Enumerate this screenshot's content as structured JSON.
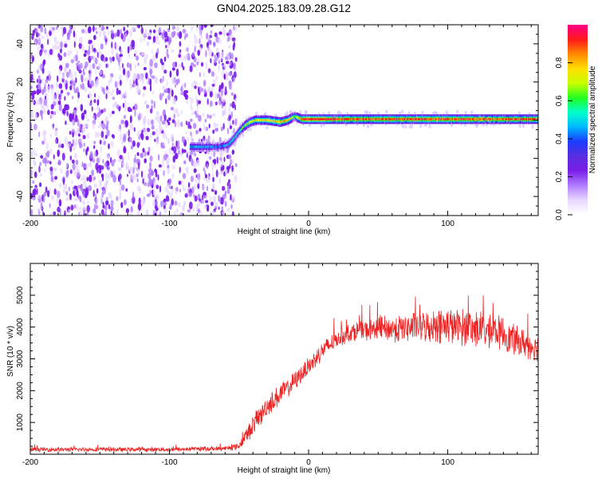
{
  "title": "GN04.2025.183.09.28.G12",
  "colors": {
    "axis": "#000000",
    "snr_line": "#ee2222",
    "scatter_noise": "#7a1ee8",
    "colormap": [
      "#ffffff",
      "#e8d8ff",
      "#b07cff",
      "#7a1ee8",
      "#5a2ee0",
      "#1b3cff",
      "#00b7ff",
      "#00ffcc",
      "#22ff22",
      "#c8ff00",
      "#ffdd00",
      "#ff8800",
      "#ff1a1a",
      "#ff0088"
    ]
  },
  "chart_data": [
    {
      "type": "heatmap",
      "name": "spectrogram",
      "title": "GN04.2025.183.09.28.G12",
      "xlabel": "Height of straight line (km)",
      "ylabel": "Frequency (Hz)",
      "xlim": [
        -200,
        165
      ],
      "ylim": [
        -50,
        50
      ],
      "x_ticks": [
        "-200",
        "-100",
        "0",
        "100"
      ],
      "y_ticks": [
        "40",
        "20",
        "0",
        "-20",
        "-40"
      ],
      "grid": false,
      "colorbar": {
        "label": "Normalized spectral amplitude",
        "range": [
          0,
          1
        ],
        "ticks": [
          "0.0",
          "0.2",
          "0.4",
          "0.6",
          "0.8"
        ]
      },
      "noise_region_x": [
        -200,
        -55
      ],
      "signal_ridge": {
        "x": [
          -85,
          -75,
          -65,
          -58,
          -54,
          -50,
          -46,
          -42,
          -38,
          -30,
          -20,
          -15,
          -10,
          -5,
          0,
          20,
          50,
          80,
          110,
          140,
          165
        ],
        "y": [
          -14,
          -14,
          -14,
          -13,
          -10,
          -6,
          -3,
          -1,
          0,
          0,
          -1,
          0,
          2,
          0.5,
          0.5,
          0.5,
          0.5,
          0.5,
          0.5,
          0.5,
          0.5
        ],
        "amplitude": [
          0.45,
          0.45,
          0.4,
          0.45,
          0.5,
          0.55,
          0.65,
          0.7,
          0.75,
          0.78,
          0.8,
          0.8,
          0.6,
          0.88,
          0.95,
          0.9,
          0.88,
          0.9,
          0.9,
          0.88,
          0.9
        ]
      }
    },
    {
      "type": "line",
      "name": "snr",
      "xlabel": "Height of straight line (km)",
      "ylabel": "SNR (10 * v/v)",
      "xlim": [
        -200,
        165
      ],
      "ylim": [
        0,
        6000
      ],
      "x_ticks": [
        "-200",
        "-100",
        "0",
        "100"
      ],
      "y_ticks": [
        "5000",
        "4000",
        "3000",
        "2000",
        "1000"
      ],
      "grid": false,
      "series_trend": {
        "x": [
          -200,
          -150,
          -100,
          -60,
          -50,
          -40,
          -30,
          -20,
          -10,
          0,
          10,
          20,
          30,
          40,
          60,
          80,
          100,
          120,
          140,
          150,
          165
        ],
        "y": [
          150,
          150,
          150,
          180,
          250,
          900,
          1500,
          1900,
          2300,
          2750,
          3250,
          3600,
          3850,
          3900,
          3950,
          4000,
          4050,
          3950,
          3800,
          3550,
          3350
        ],
        "noise": [
          70,
          70,
          70,
          80,
          120,
          350,
          350,
          350,
          300,
          300,
          300,
          300,
          300,
          350,
          450,
          500,
          600,
          600,
          550,
          500,
          450
        ]
      }
    }
  ]
}
